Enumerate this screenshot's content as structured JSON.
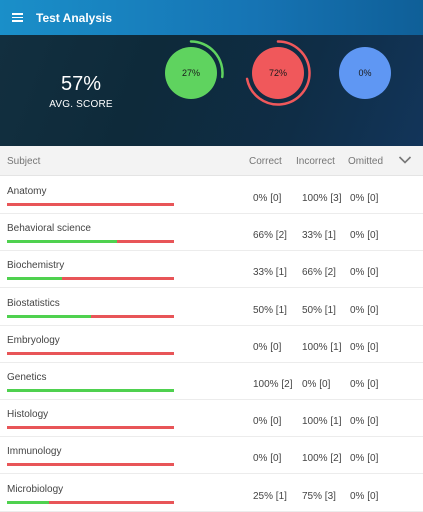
{
  "header": {
    "title": "Test Analysis",
    "menu_icon": "hamburger-menu-icon"
  },
  "summary": {
    "avg_score": "57%",
    "avg_label": "AVG. SCORE",
    "rings": [
      {
        "label": "27%",
        "fraction": 0.27,
        "color": "#5fd35f",
        "track": "#5fd35f"
      },
      {
        "label": "72%",
        "fraction": 0.72,
        "color": "#f0585b",
        "track": "#f0585b"
      },
      {
        "label": "0%",
        "fraction": 0.0,
        "color": "#5f97f3",
        "track": "#5f97f3"
      }
    ]
  },
  "table": {
    "headers": {
      "subject": "Subject",
      "correct": "Correct",
      "incorrect": "Incorrect",
      "omitted": "Omitted"
    },
    "rows": [
      {
        "subject": "Anatomy",
        "correct": "0% [0]",
        "incorrect": "100% [3]",
        "omitted": "0% [0]",
        "correct_fraction": 0.0
      },
      {
        "subject": "Behavioral science",
        "correct": "66% [2]",
        "incorrect": "33% [1]",
        "omitted": "0% [0]",
        "correct_fraction": 0.66
      },
      {
        "subject": "Biochemistry",
        "correct": "33% [1]",
        "incorrect": "66% [2]",
        "omitted": "0% [0]",
        "correct_fraction": 0.33
      },
      {
        "subject": "Biostatistics",
        "correct": "50% [1]",
        "incorrect": "50% [1]",
        "omitted": "0% [0]",
        "correct_fraction": 0.5
      },
      {
        "subject": "Embryology",
        "correct": "0% [0]",
        "incorrect": "100% [1]",
        "omitted": "0% [0]",
        "correct_fraction": 0.0
      },
      {
        "subject": "Genetics",
        "correct": "100% [2]",
        "incorrect": "0% [0]",
        "omitted": "0% [0]",
        "correct_fraction": 1.0
      },
      {
        "subject": "Histology",
        "correct": "0% [0]",
        "incorrect": "100% [1]",
        "omitted": "0% [0]",
        "correct_fraction": 0.0
      },
      {
        "subject": "Immunology",
        "correct": "0% [0]",
        "incorrect": "100% [2]",
        "omitted": "0% [0]",
        "correct_fraction": 0.0
      },
      {
        "subject": "Microbiology",
        "correct": "25% [1]",
        "incorrect": "75% [3]",
        "omitted": "0% [0]",
        "correct_fraction": 0.25
      }
    ]
  },
  "colors": {
    "correct": "#4fd14f",
    "incorrect": "#e85558",
    "appbar": "#1674b4",
    "hero": "#0e2a3a"
  }
}
